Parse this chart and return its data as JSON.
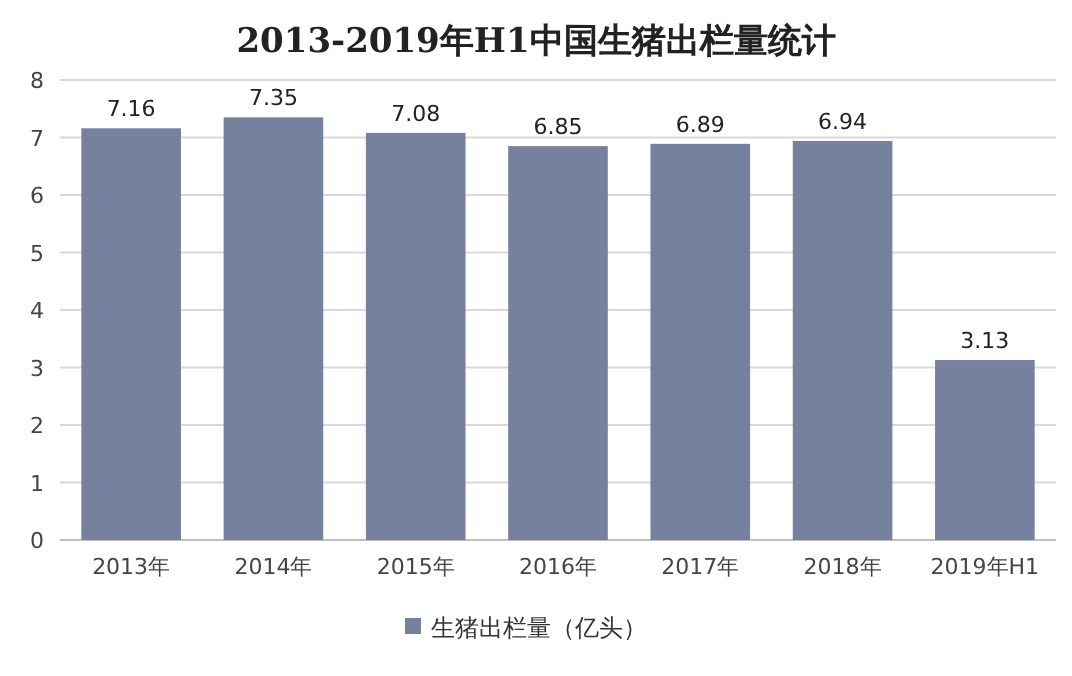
{
  "chart_data": {
    "type": "bar",
    "title": "2013-2019年H1中国生猪出栏量统计",
    "categories": [
      "2013年",
      "2014年",
      "2015年",
      "2016年",
      "2017年",
      "2018年",
      "2019年H1"
    ],
    "series": [
      {
        "name": "生猪出栏量（亿头）",
        "color": "#76809f",
        "values": [
          7.16,
          7.35,
          7.08,
          6.85,
          6.89,
          6.94,
          3.13
        ]
      }
    ],
    "ylim": [
      0,
      8
    ],
    "yticks": [
      0,
      1,
      2,
      3,
      4,
      5,
      6,
      7,
      8
    ],
    "grid": "y",
    "legend": "bottom",
    "data_labels": true
  }
}
